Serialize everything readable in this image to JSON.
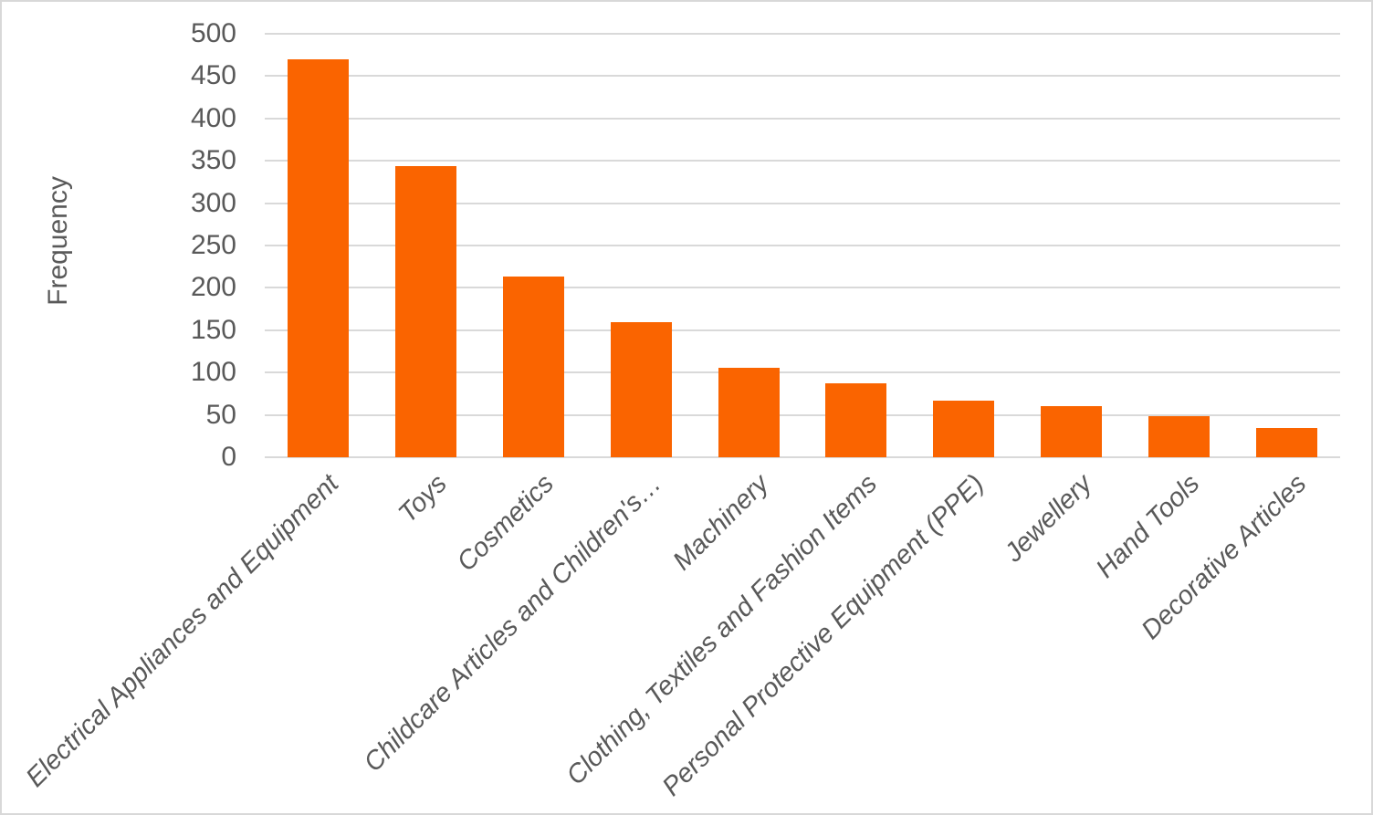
{
  "chart_data": {
    "type": "bar",
    "ylabel": "Frequency",
    "categories": [
      "Electrical Appliances and Equipment",
      "Toys",
      "Cosmetics",
      "Childcare Articles and Children's…",
      "Machinery",
      "Clothing, Textiles and Fashion Items",
      "Personal Protective Equipment (PPE)",
      "Jewellery",
      "Hand Tools",
      "Decorative Articles"
    ],
    "values": [
      470,
      344,
      213,
      160,
      106,
      87,
      67,
      60,
      48,
      34
    ],
    "ylim": [
      0,
      500
    ],
    "ytick_step": 50,
    "ytick_labels": [
      "0",
      "50",
      "100",
      "150",
      "200",
      "250",
      "300",
      "350",
      "400",
      "450",
      "500"
    ],
    "grid": true,
    "legend": false,
    "bar_color": "#fa6400",
    "gridline_color": "#d9d9d9",
    "axis_text_color": "#595959"
  }
}
